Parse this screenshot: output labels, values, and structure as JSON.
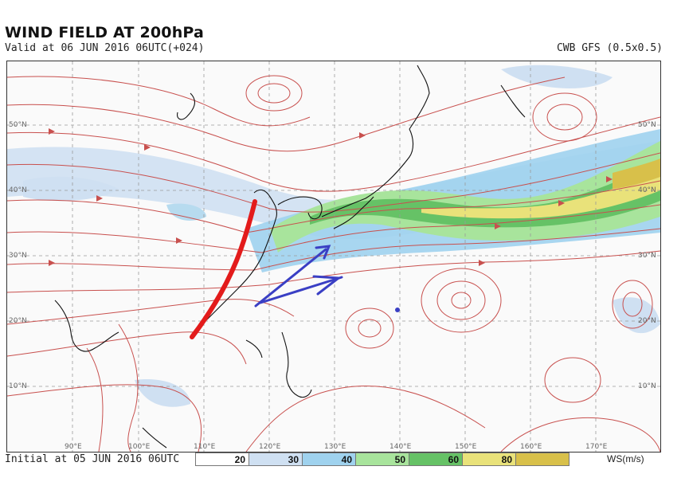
{
  "header": {
    "title": "WIND FIELD AT 200hPa",
    "valid": "Valid at 06 JUN 2016 06UTC(+024)",
    "model": "CWB GFS (0.5x0.5)"
  },
  "footer": {
    "initial": "Initial at 05 JUN 2016 06UTC",
    "unit": "WS(m/s)"
  },
  "legend": [
    {
      "label": "20",
      "color": "#ffffff"
    },
    {
      "label": "30",
      "color": "#cfe0f2"
    },
    {
      "label": "40",
      "color": "#9fd2ee"
    },
    {
      "label": "50",
      "color": "#a8e49c"
    },
    {
      "label": "60",
      "color": "#66c266"
    },
    {
      "label": "80",
      "color": "#e9e27a"
    },
    {
      "label": "",
      "color": "#d8c04a"
    }
  ],
  "lat_labels": {
    "lat50": "50°N",
    "lat40": "40°N",
    "lat30": "30°N",
    "lat20": "20°N",
    "lat10": "10°N"
  },
  "lon_labels": {
    "lon90": "90°E",
    "lon100": "100°E",
    "lon110": "110°E",
    "lon120": "120°E",
    "lon130": "130°E",
    "lon140": "140°E",
    "lon150": "150°E",
    "lon160": "160°E",
    "lon170": "170°E"
  },
  "colors": {
    "streamline": "#c8504e",
    "annotation_red": "#e31b1b",
    "annotation_blue": "#3a3fc4",
    "coast": "#111111"
  }
}
